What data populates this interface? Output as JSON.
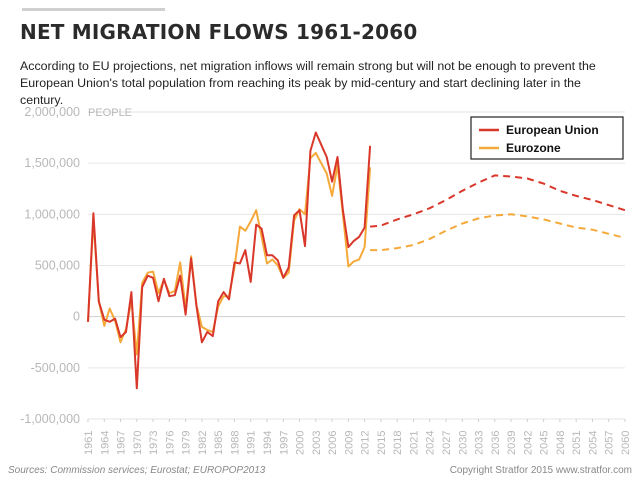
{
  "title": "NET MIGRATION FLOWS 1961-2060",
  "subtitle": "According to EU projections, net migration inflows will remain strong but will not be enough to prevent the European Union's total population from reaching its peak by mid-century and start declining later in the century.",
  "footer": {
    "sources": "Sources: Commission services; Eurostat; EUROPOP2013",
    "copyright": "Copyright Stratfor 2015   www.stratfor.com"
  },
  "colors": {
    "european_union": "#d9372a",
    "eurozone": "#f5a93a",
    "grid": "#e6e6e6",
    "axis_text": "#b8b8b8"
  },
  "chart_data": {
    "type": "line",
    "ylabel": "PEOPLE",
    "ylim": [
      -1000000,
      2000000
    ],
    "xlim": [
      1961,
      2060
    ],
    "y_ticks": [
      2000000,
      1500000,
      1000000,
      500000,
      0,
      -500000,
      -1000000
    ],
    "y_tick_labels": [
      "2,000,000",
      "1,500,000",
      "1,000,000",
      "500,000",
      "0",
      "-500,000",
      "-1,000,000"
    ],
    "x_tick_labels": [
      "1961",
      "1964",
      "1967",
      "1970",
      "1973",
      "1976",
      "1979",
      "1982",
      "1985",
      "1988",
      "1991",
      "1994",
      "1997",
      "2000",
      "2003",
      "2006",
      "2009",
      "2012",
      "2015",
      "2018",
      "2021",
      "2024",
      "2027",
      "2030",
      "2033",
      "2036",
      "2039",
      "2042",
      "2045",
      "2048",
      "2051",
      "2054",
      "2057",
      "2060"
    ],
    "grid": true,
    "legend_position": "top-right",
    "series": [
      {
        "name": "European Union",
        "color": "#d9372a",
        "historical": {
          "x": [
            1961,
            1962,
            1963,
            1964,
            1965,
            1966,
            1967,
            1968,
            1969,
            1970,
            1971,
            1972,
            1973,
            1974,
            1975,
            1976,
            1977,
            1978,
            1979,
            1980,
            1981,
            1982,
            1983,
            1984,
            1985,
            1986,
            1987,
            1988,
            1989,
            1990,
            1991,
            1992,
            1993,
            1994,
            1995,
            1996,
            1997,
            1998,
            1999,
            2000,
            2001,
            2002,
            2003,
            2004,
            2005,
            2006,
            2007,
            2008,
            2009,
            2010,
            2011,
            2012,
            2013
          ],
          "y": [
            -50000,
            1010000,
            150000,
            -30000,
            -50000,
            -20000,
            -200000,
            -150000,
            240000,
            -700000,
            290000,
            400000,
            380000,
            150000,
            370000,
            200000,
            210000,
            400000,
            20000,
            570000,
            100000,
            -250000,
            -150000,
            -190000,
            150000,
            240000,
            170000,
            530000,
            520000,
            650000,
            340000,
            900000,
            860000,
            600000,
            600000,
            550000,
            380000,
            480000,
            990000,
            1040000,
            690000,
            1620000,
            1800000,
            1680000,
            1560000,
            1320000,
            1560000,
            1040000,
            680000,
            740000,
            780000,
            870000,
            1670000
          ]
        },
        "projection": {
          "x": [
            2013,
            2015,
            2018,
            2021,
            2024,
            2027,
            2030,
            2033,
            2036,
            2039,
            2042,
            2045,
            2048,
            2051,
            2054,
            2057,
            2060
          ],
          "y": [
            880000,
            890000,
            950000,
            1000000,
            1060000,
            1140000,
            1230000,
            1310000,
            1380000,
            1370000,
            1350000,
            1300000,
            1230000,
            1180000,
            1140000,
            1090000,
            1040000
          ]
        }
      },
      {
        "name": "Eurozone",
        "color": "#f5a93a",
        "historical": {
          "x": [
            1961,
            1962,
            1963,
            1964,
            1965,
            1966,
            1967,
            1968,
            1969,
            1970,
            1971,
            1972,
            1973,
            1974,
            1975,
            1976,
            1977,
            1978,
            1979,
            1980,
            1981,
            1982,
            1983,
            1984,
            1985,
            1986,
            1987,
            1988,
            1989,
            1990,
            1991,
            1992,
            1993,
            1994,
            1995,
            1996,
            1997,
            1998,
            1999,
            2000,
            2001,
            2002,
            2003,
            2004,
            2005,
            2006,
            2007,
            2008,
            2009,
            2010,
            2011,
            2012,
            2013
          ],
          "y": [
            -50000,
            950000,
            150000,
            -90000,
            80000,
            -40000,
            -250000,
            -120000,
            160000,
            -370000,
            330000,
            430000,
            440000,
            230000,
            360000,
            230000,
            250000,
            530000,
            80000,
            590000,
            110000,
            -100000,
            -130000,
            -150000,
            100000,
            200000,
            200000,
            480000,
            880000,
            840000,
            930000,
            1040000,
            780000,
            520000,
            560000,
            500000,
            380000,
            430000,
            940000,
            1050000,
            1000000,
            1550000,
            1600000,
            1500000,
            1400000,
            1180000,
            1480000,
            1000000,
            490000,
            540000,
            560000,
            680000,
            1460000
          ]
        },
        "projection": {
          "x": [
            2013,
            2015,
            2018,
            2021,
            2024,
            2027,
            2030,
            2033,
            2036,
            2039,
            2042,
            2045,
            2048,
            2051,
            2054,
            2057,
            2060
          ],
          "y": [
            650000,
            650000,
            670000,
            700000,
            760000,
            840000,
            910000,
            960000,
            990000,
            1000000,
            980000,
            950000,
            910000,
            870000,
            850000,
            810000,
            770000
          ]
        }
      }
    ]
  }
}
